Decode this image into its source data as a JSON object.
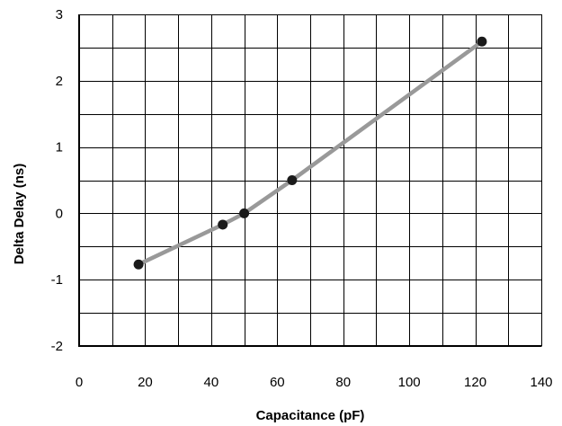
{
  "chart_data": {
    "type": "line",
    "title": "",
    "xlabel": "Capacitance (pF)",
    "ylabel": "Delta Delay  (ns)",
    "xlim": [
      0,
      140
    ],
    "ylim": [
      -2,
      3
    ],
    "x_ticks": [
      0,
      20,
      40,
      60,
      80,
      100,
      120,
      140
    ],
    "y_ticks": [
      -2,
      -1,
      0,
      1,
      2,
      3
    ],
    "x_tick_labels": [
      "0",
      "20",
      "40",
      "60",
      "80",
      "100",
      "120",
      "140"
    ],
    "y_tick_labels": [
      "-2",
      "-1",
      "0",
      "1",
      "2",
      "3"
    ],
    "x_grid_step": 10,
    "y_grid_step": 0.5,
    "grid": true,
    "legend": "none",
    "series": [
      {
        "x": [
          18,
          43.5,
          50,
          64.5,
          122
        ],
        "y": [
          -0.77,
          -0.17,
          0.0,
          0.5,
          2.59
        ],
        "line_color": "#999999",
        "marker_color": "#1a1a1a"
      }
    ]
  }
}
